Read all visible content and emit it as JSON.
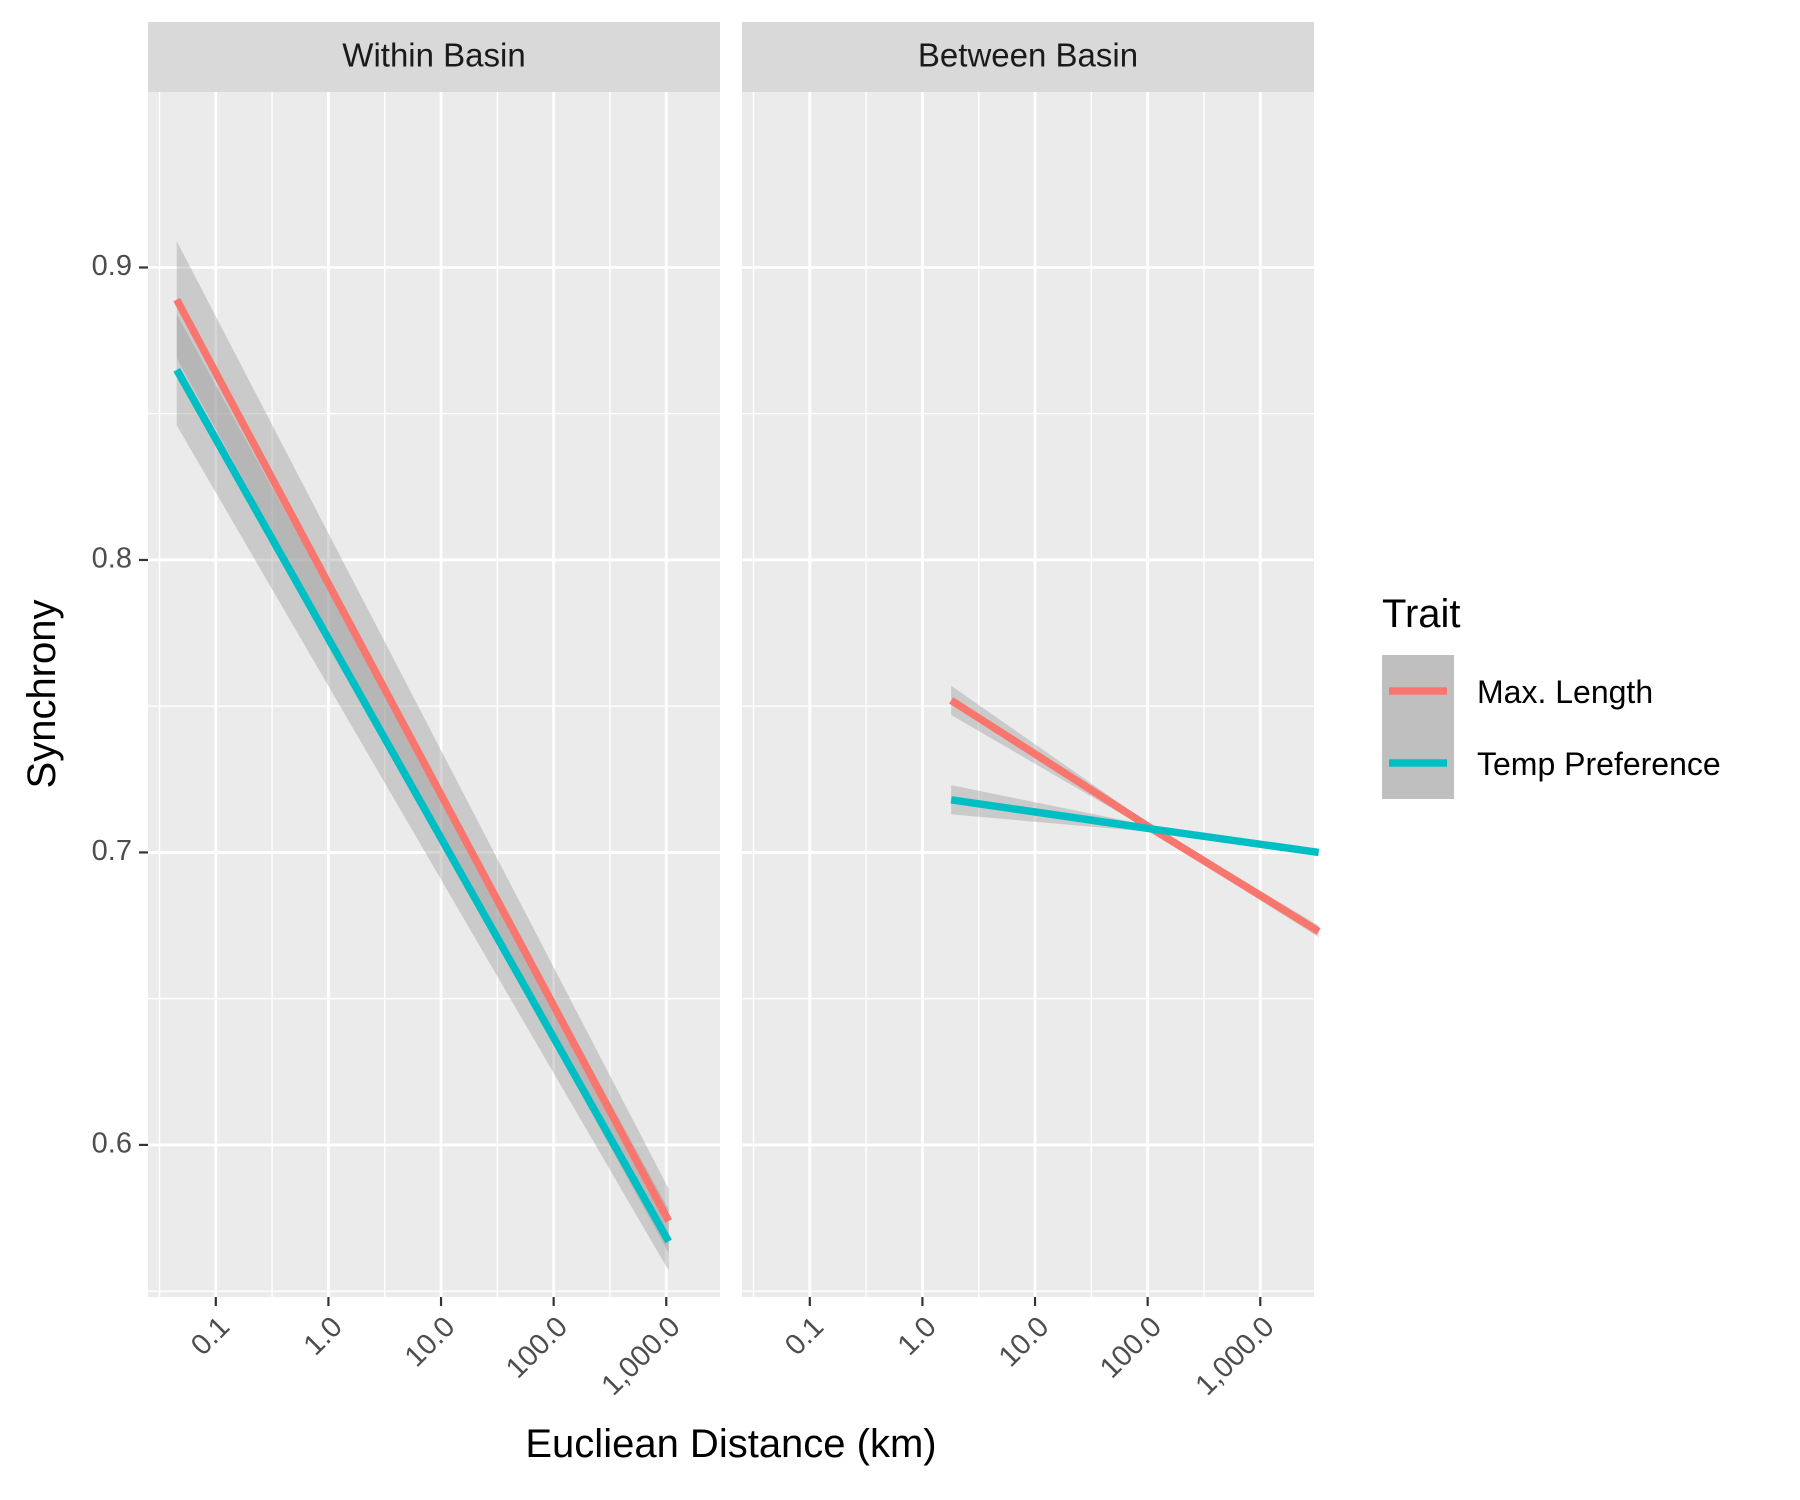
{
  "chart_data": {
    "type": "line",
    "x_scale": "log10",
    "xlabel": "Eucliean Distance (km)",
    "ylabel": "Synchrony",
    "ylim": [
      0.548,
      0.96
    ],
    "y_ticks": [
      0.6,
      0.7,
      0.8,
      0.9
    ],
    "y_tick_labels": [
      "0.6",
      "0.7",
      "0.8",
      "0.9"
    ],
    "x_ticks": [
      0.1,
      1,
      10,
      100,
      1000
    ],
    "x_tick_labels": [
      "0.1",
      "1.0",
      "10.0",
      "100.0",
      "1,000.0"
    ],
    "grid": true,
    "legend": {
      "title": "Trait",
      "position": "right",
      "entries": [
        "Max. Length",
        "Temp Preference"
      ]
    },
    "colors": {
      "Max. Length": "#F8766D",
      "Temp Preference": "#00BFC4",
      "panel_bg": "#EBEBEB",
      "strip_bg": "#D9D9D9",
      "ribbon": "#999999"
    },
    "panels": [
      {
        "title": "Within Basin",
        "xlim": [
          0.025,
          3000
        ],
        "series": [
          {
            "name": "Max. Length",
            "x": [
              0.045,
              1050
            ],
            "y": [
              0.889,
              0.574
            ],
            "ci_low": [
              0.869,
              0.563
            ],
            "ci_high": [
              0.909,
              0.585
            ]
          },
          {
            "name": "Temp Preference",
            "x": [
              0.045,
              1050
            ],
            "y": [
              0.865,
              0.567
            ],
            "ci_low": [
              0.846,
              0.557
            ],
            "ci_high": [
              0.884,
              0.578
            ]
          }
        ]
      },
      {
        "title": "Between Basin",
        "xlim": [
          0.025,
          3000
        ],
        "series": [
          {
            "name": "Max. Length",
            "x": [
              1.8,
              110,
              3300
            ],
            "y": [
              0.752,
              0.708,
              0.673
            ],
            "ci_low": [
              0.747,
              0.707,
              0.671
            ],
            "ci_high": [
              0.757,
              0.709,
              0.675
            ]
          },
          {
            "name": "Temp Preference",
            "x": [
              1.8,
              110,
              3300
            ],
            "y": [
              0.718,
              0.708,
              0.7
            ],
            "ci_low": [
              0.713,
              0.707,
              0.699
            ],
            "ci_high": [
              0.723,
              0.709,
              0.701
            ]
          }
        ]
      }
    ]
  }
}
